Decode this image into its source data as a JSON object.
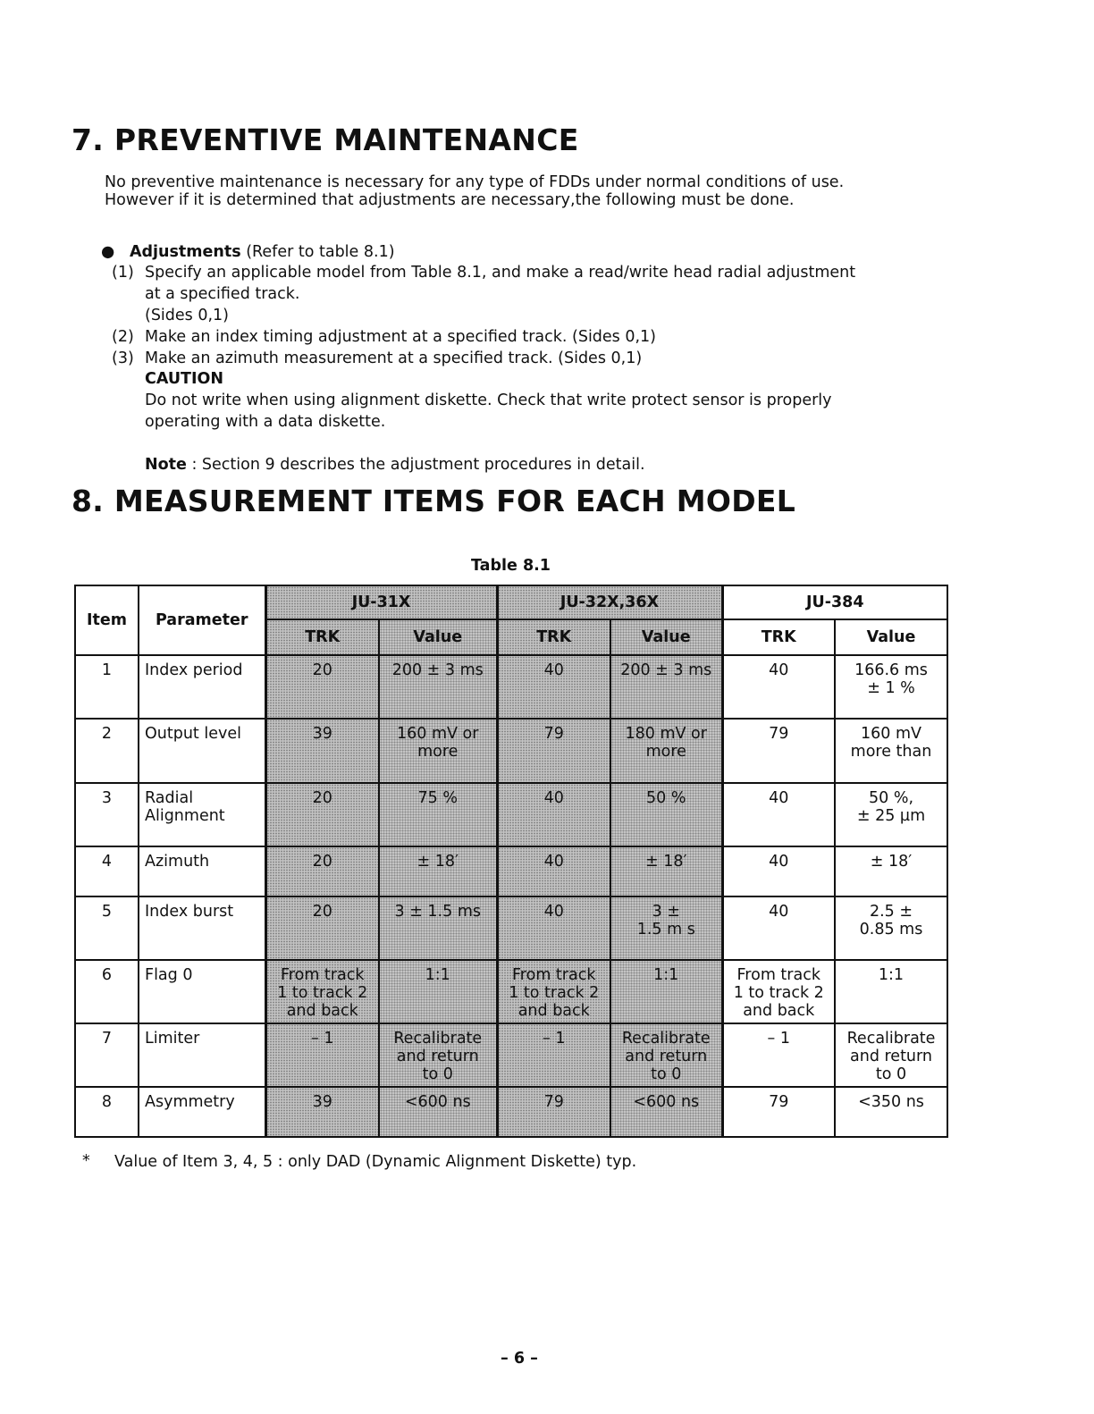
{
  "section7": {
    "title": "7.  PREVENTIVE MAINTENANCE",
    "intro": [
      "No preventive maintenance is necessary for any type of FDDs under normal conditions of use.",
      "However if it is determined that adjustments are necessary,the following must be done."
    ],
    "bullet_label": "Adjustments",
    "bullet_ref": " (Refer to table 8.1)",
    "steps": [
      {
        "num": "(1)",
        "lines": [
          "Specify an applicable model from Table 8.1, and make a read/write head radial adjustment",
          "at a specified track.",
          "(Sides 0,1)"
        ]
      },
      {
        "num": "(2)",
        "lines": [
          "Make an index timing adjustment at a specified track. (Sides 0,1)"
        ]
      },
      {
        "num": "(3)",
        "lines": [
          "Make an azimuth measurement at a specified track. (Sides 0,1)"
        ]
      }
    ],
    "caution_label": "CAUTION",
    "caution_lines": [
      "Do not write when using alignment diskette.  Check that write protect sensor is properly",
      "operating with a data diskette."
    ],
    "note_label": "Note",
    "note_text": " : Section 9 describes the adjustment procedures in detail."
  },
  "section8": {
    "title": "8.  MEASUREMENT ITEMS FOR EACH MODEL",
    "table_caption": "Table 8.1",
    "headers": {
      "item": "Item",
      "parameter": "Parameter",
      "models": [
        "JU-31X",
        "JU-32X,36X",
        "JU-384"
      ],
      "trk": "TRK",
      "value": "Value"
    },
    "rows": [
      {
        "item": "1",
        "param": "Index period",
        "cells": [
          "20",
          "200 ± 3 ms",
          "40",
          "200 ± 3 ms",
          "40",
          "166.6 ms\n± 1 %"
        ]
      },
      {
        "item": "2",
        "param": "Output level",
        "cells": [
          "39",
          "160 mV  or\nmore",
          "79",
          "180 mV or\nmore",
          "79",
          "160 mV\nmore than"
        ]
      },
      {
        "item": "3",
        "param": "Radial\nAlignment",
        "cells": [
          "20",
          "75 %",
          "40",
          "50 %",
          "40",
          "50 %,\n± 25 µm"
        ]
      },
      {
        "item": "4",
        "param": "Azimuth",
        "cells": [
          "20",
          "± 18′",
          "40",
          "± 18′",
          "40",
          "± 18′"
        ]
      },
      {
        "item": "5",
        "param": "Index burst",
        "cells": [
          "20",
          "3 ± 1.5 ms",
          "40",
          "3 ±\n1.5 m s",
          "40",
          "2.5 ±\n0.85 ms"
        ]
      },
      {
        "item": "6",
        "param": "Flag 0",
        "cells": [
          "From track\n1 to track 2\nand back",
          "1:1",
          "From track\n1 to track 2\nand back",
          "1:1",
          "From track\n1 to track 2\nand back",
          "1:1"
        ]
      },
      {
        "item": "7",
        "param": "Limiter",
        "cells": [
          "– 1",
          "Recalibrate\nand return\nto 0",
          "– 1",
          "Recalibrate\nand return\nto 0",
          "– 1",
          "Recalibrate\nand return\nto 0"
        ]
      },
      {
        "item": "8",
        "param": "Asymmetry",
        "cells": [
          "39",
          "<600 ns",
          "79",
          "<600 ns",
          "79",
          "<350 ns"
        ]
      }
    ],
    "footnote_mark": "*",
    "footnote": "Value of Item 3,  4,  5 :  only DAD (Dynamic Alignment Diskette) typ."
  },
  "page_number": "– 6 –"
}
